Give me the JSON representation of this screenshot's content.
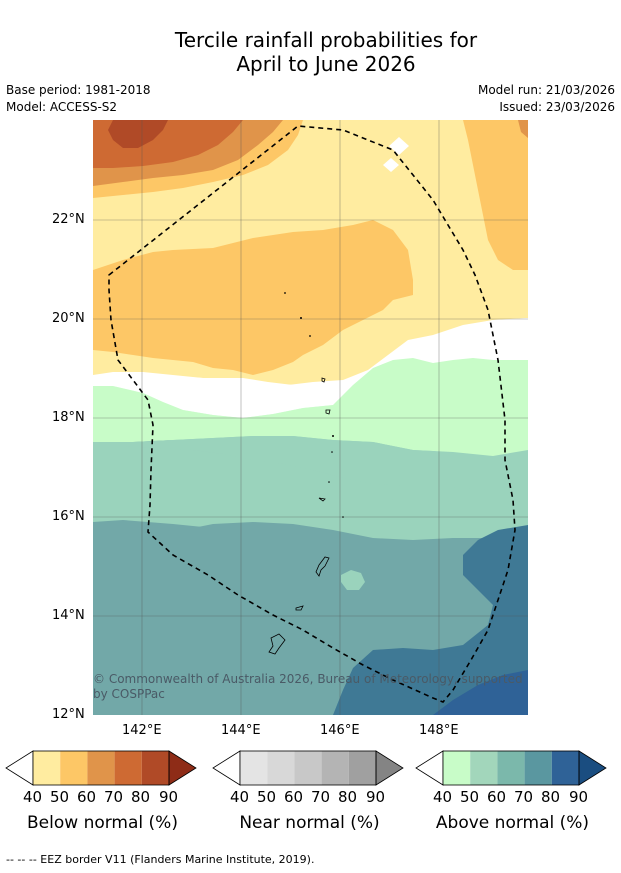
{
  "title": {
    "line1": "Tercile rainfall probabilities for",
    "line2": "April to June 2026"
  },
  "meta": {
    "base_period": "Base period: 1981-2018",
    "model": "Model: ACCESS-S2",
    "model_run": "Model run: 21/03/2026",
    "issued": "Issued: 23/03/2026"
  },
  "map": {
    "lat_labels": [
      "22°N",
      "20°N",
      "18°N",
      "16°N",
      "14°N",
      "12°N"
    ],
    "lon_labels": [
      "142°E",
      "144°E",
      "146°E",
      "148°E"
    ],
    "copyright_line1": "© Commonwealth of Australia 2026, Bureau of Meteorology, supported",
    "copyright_line2": "by COSPPac"
  },
  "colorbars": [
    {
      "title": "Below normal (%)",
      "ticks": [
        "40",
        "50",
        "60",
        "70",
        "80",
        "90"
      ],
      "colors": [
        "#ffffff",
        "#ffeca0",
        "#fdc766",
        "#e0944a",
        "#ce6a33",
        "#b04a27",
        "#8e2c17"
      ]
    },
    {
      "title": "Near normal (%)",
      "ticks": [
        "40",
        "50",
        "60",
        "70",
        "80",
        "90"
      ],
      "colors": [
        "#ffffff",
        "#e4e4e4",
        "#d8d8d8",
        "#c8c8c8",
        "#b4b4b4",
        "#a0a0a0",
        "#848484"
      ]
    },
    {
      "title": "Above normal (%)",
      "ticks": [
        "40",
        "50",
        "60",
        "70",
        "80",
        "90"
      ],
      "colors": [
        "#ffffff",
        "#c8fcc8",
        "#a2d6bb",
        "#7bb8ab",
        "#5a97a0",
        "#2f6297",
        "#1a4d80"
      ]
    }
  ],
  "footer": "--  --  -- EEZ border V11 (Flanders Marine Institute, 2019)."
}
